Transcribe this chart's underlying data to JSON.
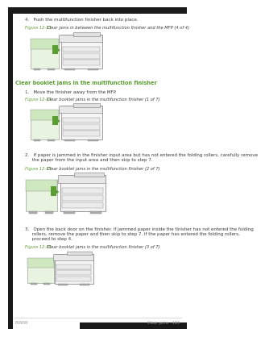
{
  "bg_color": "#ffffff",
  "text_color": "#3a3a3a",
  "green_color": "#5a9e32",
  "gray_color": "#999999",
  "dark_bar": "#1a1a1a",
  "step4_text": "4.   Push the multifunction finisher back into place.",
  "fig1233_label": "Figure 12-33",
  "fig1233_caption": "  Clear jams in between the multifunction finisher and the MFP (4 of 4)",
  "section_heading": "Clear booklet jams in the multifunction finisher",
  "step1_text": "1.   Move the finisher away from the MFP.",
  "fig1234_label": "Figure 12-34",
  "fig1234_caption": "  Clear booklet jams in the multifunction finisher (1 of 7)",
  "step2_text": "2.   If paper is jammed in the finisher input area but has not entered the folding rollers, carefully remove\n     the paper from the input area and then skip to step 7.",
  "fig1235_label": "Figure 12-35",
  "fig1235_caption": "  Clear booklet jams in the multifunction finisher (2 of 7)",
  "step3_text": "3.   Open the back door on the finisher. If jammed paper inside the finisher has not entered the folding\n     rollers, remove the paper and then skip to step 7. If the paper has entered the folding rollers,\n     proceed to step 4.",
  "fig1236_label": "Figure 12-36",
  "fig1236_caption": "  Clear booklet jams in the multifunction finisher (3 of 7)",
  "footer_left": "ENWW",
  "footer_right": "Clear jams   193"
}
